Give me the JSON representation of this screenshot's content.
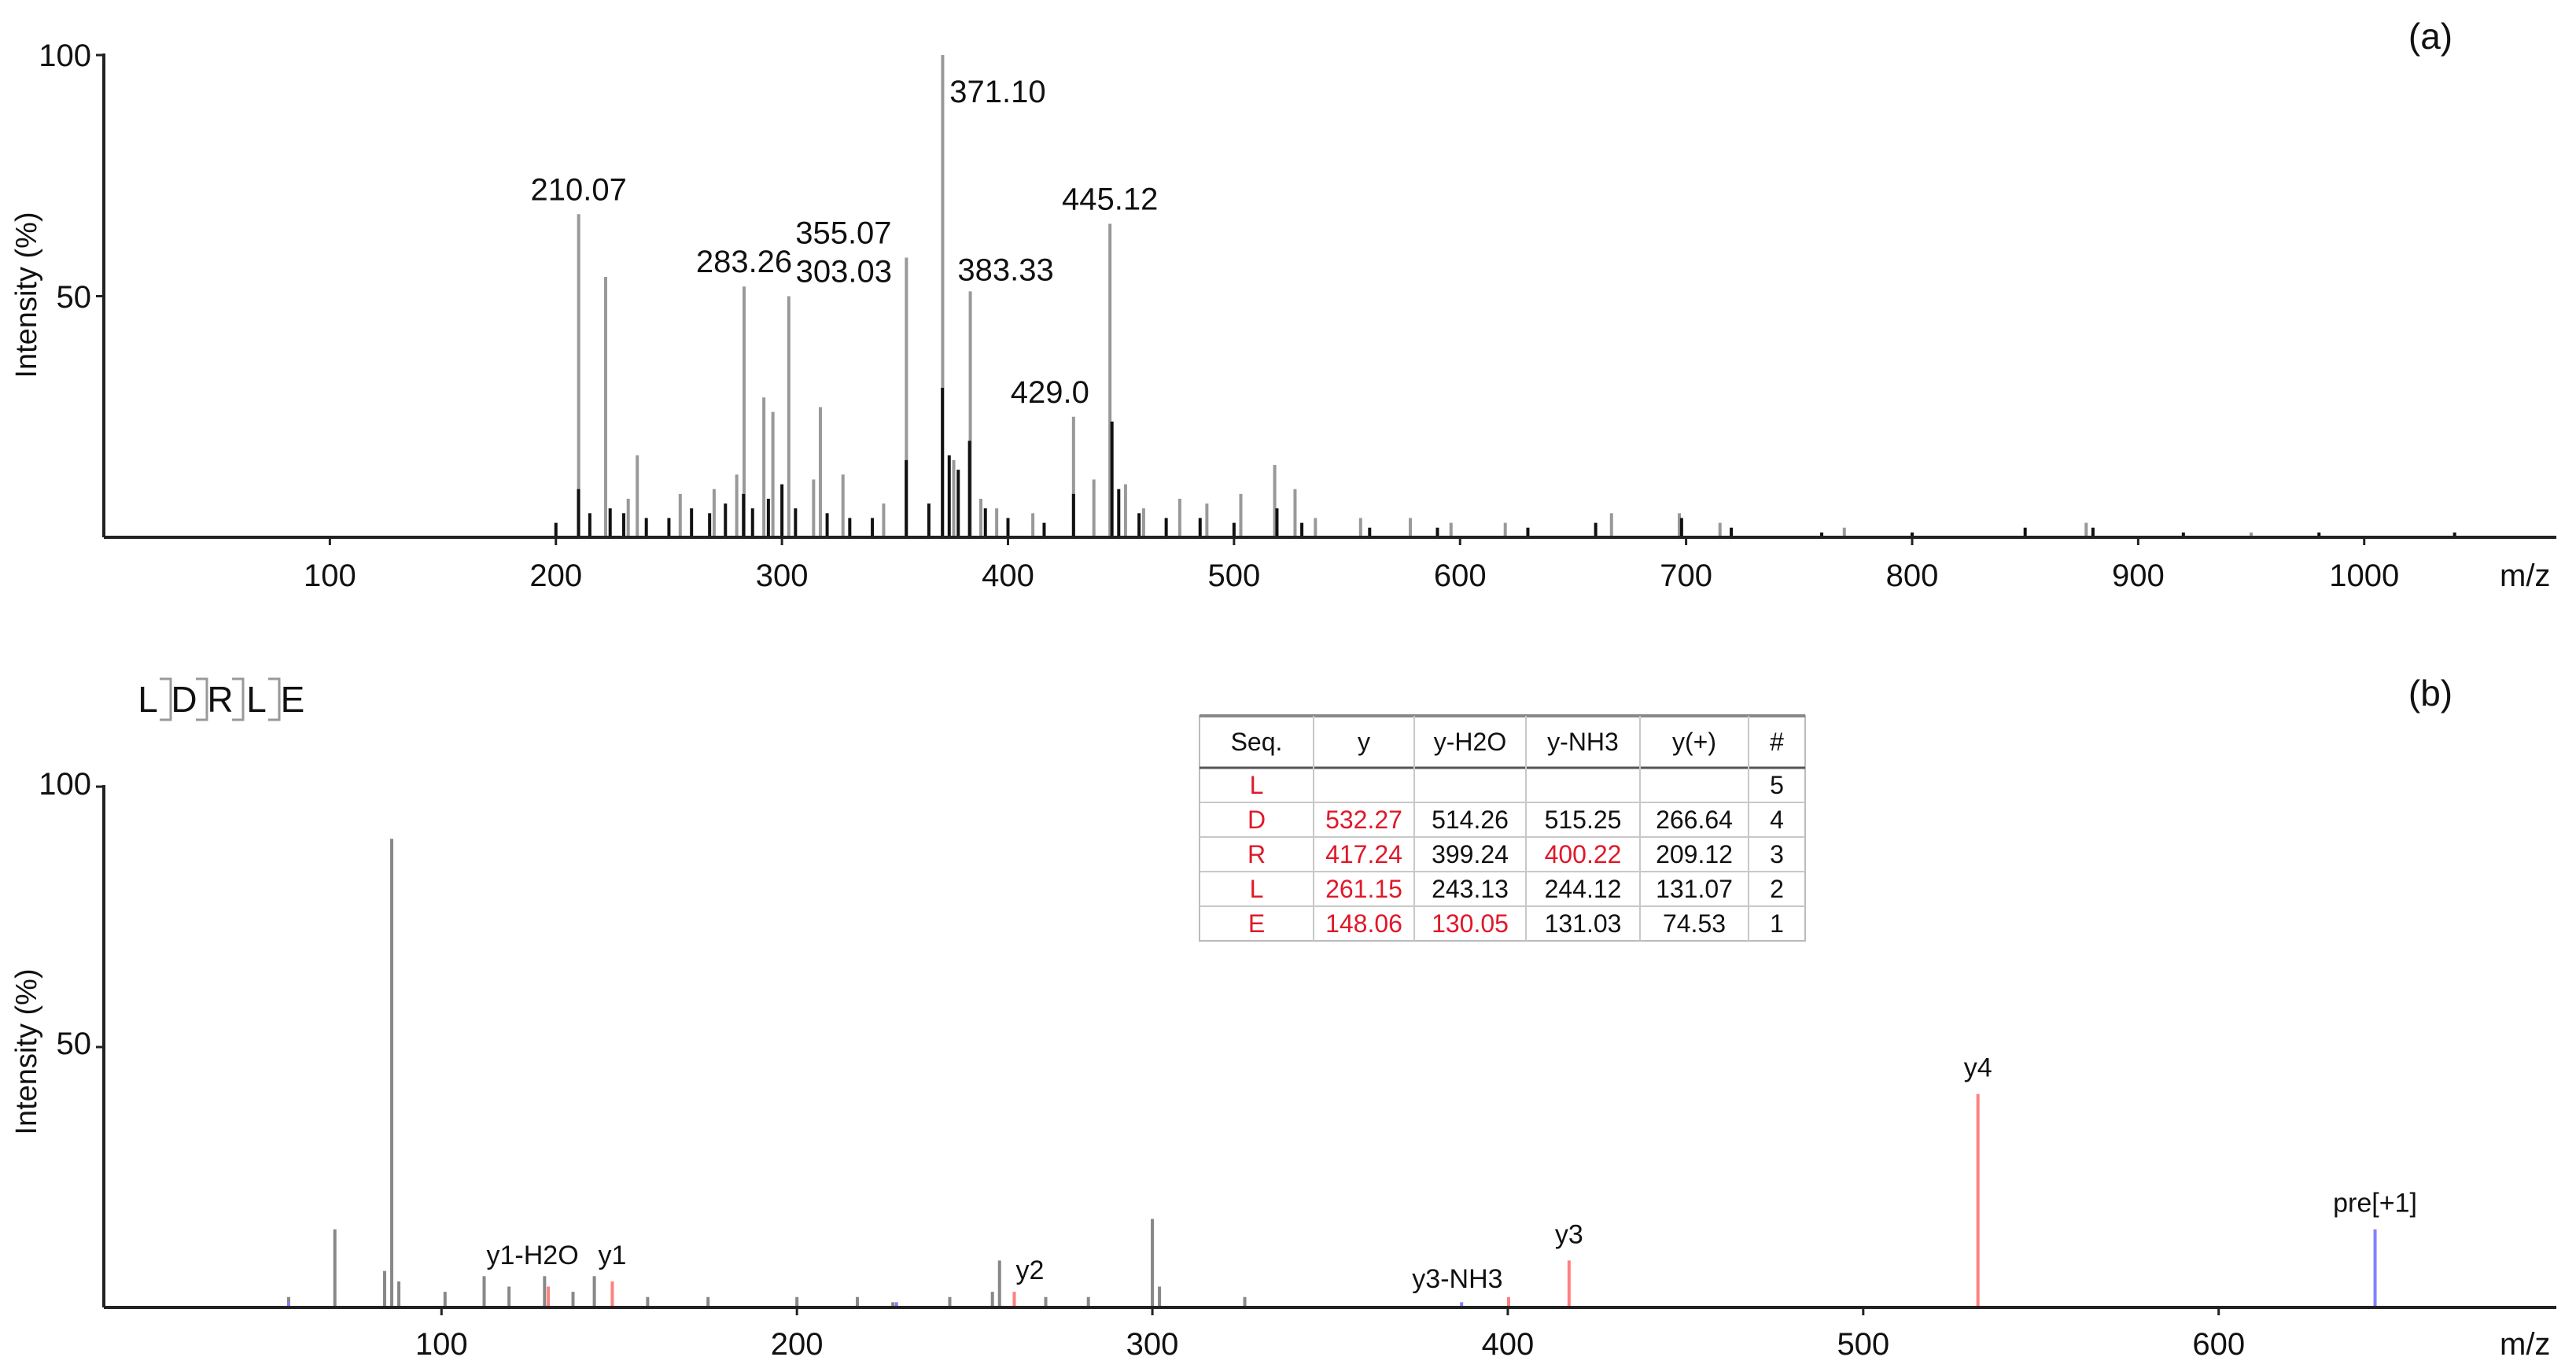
{
  "chart_data": [
    {
      "type": "bar",
      "panel_label": "(a)",
      "ylabel": "Intensity (%)",
      "xlabel": "m/z",
      "xlim": [
        0,
        1085
      ],
      "ylim": [
        0,
        100
      ],
      "xticks": [
        "100",
        "200",
        "300",
        "400",
        "500",
        "600",
        "700",
        "800",
        "900",
        "1000"
      ],
      "yticks": [
        "50",
        "100"
      ],
      "annotations": [
        {
          "x": 210.07,
          "y": 67,
          "label": "210.07"
        },
        {
          "x": 283.26,
          "y": 52,
          "label": "283.26"
        },
        {
          "x": 303.03,
          "y": 50,
          "label": "303.03"
        },
        {
          "x": 355.07,
          "y": 58,
          "label": "355.07"
        },
        {
          "x": 371.1,
          "y": 100,
          "label": "371.10"
        },
        {
          "x": 383.33,
          "y": 51,
          "label": "383.33"
        },
        {
          "x": 429.0,
          "y": 25,
          "label": "429.0"
        },
        {
          "x": 445.12,
          "y": 65,
          "label": "445.12"
        }
      ],
      "series": [
        {
          "color": "#999999",
          "peaks": [
            {
              "x": 210.07,
              "y": 67
            },
            {
              "x": 222,
              "y": 54
            },
            {
              "x": 232,
              "y": 8
            },
            {
              "x": 236,
              "y": 17
            },
            {
              "x": 255,
              "y": 9
            },
            {
              "x": 270,
              "y": 10
            },
            {
              "x": 280,
              "y": 13
            },
            {
              "x": 283.26,
              "y": 52
            },
            {
              "x": 292,
              "y": 29
            },
            {
              "x": 296,
              "y": 26
            },
            {
              "x": 303.03,
              "y": 50
            },
            {
              "x": 314,
              "y": 12
            },
            {
              "x": 317,
              "y": 27
            },
            {
              "x": 327,
              "y": 13
            },
            {
              "x": 345,
              "y": 7
            },
            {
              "x": 355.07,
              "y": 58
            },
            {
              "x": 371.1,
              "y": 100
            },
            {
              "x": 376,
              "y": 16
            },
            {
              "x": 383.33,
              "y": 51
            },
            {
              "x": 388,
              "y": 8
            },
            {
              "x": 395,
              "y": 6
            },
            {
              "x": 411,
              "y": 5
            },
            {
              "x": 429.0,
              "y": 25
            },
            {
              "x": 438,
              "y": 12
            },
            {
              "x": 445.12,
              "y": 65
            },
            {
              "x": 452,
              "y": 11
            },
            {
              "x": 460,
              "y": 6
            },
            {
              "x": 476,
              "y": 8
            },
            {
              "x": 488,
              "y": 7
            },
            {
              "x": 503,
              "y": 9
            },
            {
              "x": 518,
              "y": 15
            },
            {
              "x": 527,
              "y": 10
            },
            {
              "x": 536,
              "y": 4
            },
            {
              "x": 556,
              "y": 4
            },
            {
              "x": 578,
              "y": 4
            },
            {
              "x": 596,
              "y": 3
            },
            {
              "x": 620,
              "y": 3
            },
            {
              "x": 667,
              "y": 5
            },
            {
              "x": 697,
              "y": 5
            },
            {
              "x": 715,
              "y": 3
            },
            {
              "x": 770,
              "y": 2
            },
            {
              "x": 877,
              "y": 3
            },
            {
              "x": 950,
              "y": 1
            }
          ]
        },
        {
          "color": "#111111",
          "peaks": [
            {
              "x": 200,
              "y": 3
            },
            {
              "x": 210,
              "y": 10
            },
            {
              "x": 215,
              "y": 5
            },
            {
              "x": 224,
              "y": 6
            },
            {
              "x": 230,
              "y": 5
            },
            {
              "x": 240,
              "y": 4
            },
            {
              "x": 250,
              "y": 4
            },
            {
              "x": 260,
              "y": 6
            },
            {
              "x": 268,
              "y": 5
            },
            {
              "x": 275,
              "y": 7
            },
            {
              "x": 283,
              "y": 9
            },
            {
              "x": 287,
              "y": 6
            },
            {
              "x": 294,
              "y": 8
            },
            {
              "x": 300,
              "y": 11
            },
            {
              "x": 306,
              "y": 6
            },
            {
              "x": 320,
              "y": 5
            },
            {
              "x": 330,
              "y": 4
            },
            {
              "x": 340,
              "y": 4
            },
            {
              "x": 355,
              "y": 16
            },
            {
              "x": 365,
              "y": 7
            },
            {
              "x": 371,
              "y": 31
            },
            {
              "x": 374,
              "y": 17
            },
            {
              "x": 378,
              "y": 14
            },
            {
              "x": 383,
              "y": 20
            },
            {
              "x": 390,
              "y": 6
            },
            {
              "x": 400,
              "y": 4
            },
            {
              "x": 416,
              "y": 3
            },
            {
              "x": 429,
              "y": 9
            },
            {
              "x": 446,
              "y": 24
            },
            {
              "x": 449,
              "y": 10
            },
            {
              "x": 458,
              "y": 5
            },
            {
              "x": 470,
              "y": 4
            },
            {
              "x": 485,
              "y": 4
            },
            {
              "x": 500,
              "y": 3
            },
            {
              "x": 519,
              "y": 6
            },
            {
              "x": 530,
              "y": 3
            },
            {
              "x": 560,
              "y": 2
            },
            {
              "x": 590,
              "y": 2
            },
            {
              "x": 630,
              "y": 2
            },
            {
              "x": 660,
              "y": 3
            },
            {
              "x": 698,
              "y": 4
            },
            {
              "x": 720,
              "y": 2
            },
            {
              "x": 760,
              "y": 1
            },
            {
              "x": 800,
              "y": 1
            },
            {
              "x": 850,
              "y": 2
            },
            {
              "x": 880,
              "y": 2
            },
            {
              "x": 920,
              "y": 1
            },
            {
              "x": 980,
              "y": 1
            },
            {
              "x": 1040,
              "y": 1
            }
          ]
        }
      ]
    },
    {
      "type": "bar",
      "panel_label": "(b)",
      "ylabel": "Intensity (%)",
      "xlabel": "m/z",
      "xlim": [
        5,
        695
      ],
      "ylim": [
        0,
        100
      ],
      "xticks": [
        "100",
        "200",
        "300",
        "400",
        "500",
        "600"
      ],
      "yticks": [
        "50",
        "100"
      ],
      "sequence": [
        "L",
        "D",
        "R",
        "L",
        "E"
      ],
      "annotations": [
        {
          "x": 130.05,
          "y": 5,
          "label": "y1-H2O"
        },
        {
          "x": 148.06,
          "y": 5,
          "label": "y1"
        },
        {
          "x": 261.15,
          "y": 3,
          "label": "y2"
        },
        {
          "x": 400.22,
          "y": 2,
          "label": "y3-NH3"
        },
        {
          "x": 417.24,
          "y": 9,
          "label": "y3"
        },
        {
          "x": 532.27,
          "y": 41,
          "label": "y4"
        },
        {
          "x": 644,
          "y": 15,
          "label": "pre[+1]"
        }
      ],
      "series": [
        {
          "color": "#888888",
          "peaks": [
            {
              "x": 57,
              "y": 2
            },
            {
              "x": 70,
              "y": 15
            },
            {
              "x": 84,
              "y": 7
            },
            {
              "x": 86,
              "y": 90
            },
            {
              "x": 88,
              "y": 5
            },
            {
              "x": 101,
              "y": 3
            },
            {
              "x": 112,
              "y": 6
            },
            {
              "x": 119,
              "y": 4
            },
            {
              "x": 129,
              "y": 6
            },
            {
              "x": 137,
              "y": 3
            },
            {
              "x": 143,
              "y": 6
            },
            {
              "x": 158,
              "y": 2
            },
            {
              "x": 175,
              "y": 2
            },
            {
              "x": 200,
              "y": 2
            },
            {
              "x": 217,
              "y": 2
            },
            {
              "x": 227,
              "y": 1
            },
            {
              "x": 243,
              "y": 2
            },
            {
              "x": 255,
              "y": 3
            },
            {
              "x": 257,
              "y": 9
            },
            {
              "x": 270,
              "y": 2
            },
            {
              "x": 282,
              "y": 2
            },
            {
              "x": 300,
              "y": 17
            },
            {
              "x": 302,
              "y": 4
            },
            {
              "x": 326,
              "y": 2
            }
          ]
        },
        {
          "color": "#ff8080",
          "peaks": [
            {
              "x": 130.05,
              "y": 4
            },
            {
              "x": 148.06,
              "y": 5
            },
            {
              "x": 261.15,
              "y": 3
            },
            {
              "x": 400.22,
              "y": 2
            },
            {
              "x": 417.24,
              "y": 9
            },
            {
              "x": 532.27,
              "y": 41
            }
          ]
        },
        {
          "color": "#8080ff",
          "peaks": [
            {
              "x": 57,
              "y": 1
            },
            {
              "x": 228,
              "y": 1
            },
            {
              "x": 387,
              "y": 1
            },
            {
              "x": 644,
              "y": 15
            }
          ]
        }
      ],
      "table": {
        "headers": [
          "Seq.",
          "y",
          "y-H2O",
          "y-NH3",
          "y(+)",
          "#"
        ],
        "rows": [
          {
            "seq": "L",
            "y": "",
            "y_h2o": "",
            "y_nh3": "",
            "y_plus": "",
            "num": "5",
            "red": []
          },
          {
            "seq": "D",
            "y": "532.27",
            "y_h2o": "514.26",
            "y_nh3": "515.25",
            "y_plus": "266.64",
            "num": "4",
            "red": [
              "y"
            ]
          },
          {
            "seq": "R",
            "y": "417.24",
            "y_h2o": "399.24",
            "y_nh3": "400.22",
            "y_plus": "209.12",
            "num": "3",
            "red": [
              "y",
              "y_nh3"
            ]
          },
          {
            "seq": "L",
            "y": "261.15",
            "y_h2o": "243.13",
            "y_nh3": "244.12",
            "y_plus": "131.07",
            "num": "2",
            "red": [
              "y"
            ]
          },
          {
            "seq": "E",
            "y": "148.06",
            "y_h2o": "130.05",
            "y_nh3": "131.03",
            "y_plus": "74.53",
            "num": "1",
            "red": [
              "y",
              "y_h2o"
            ]
          }
        ]
      }
    }
  ]
}
